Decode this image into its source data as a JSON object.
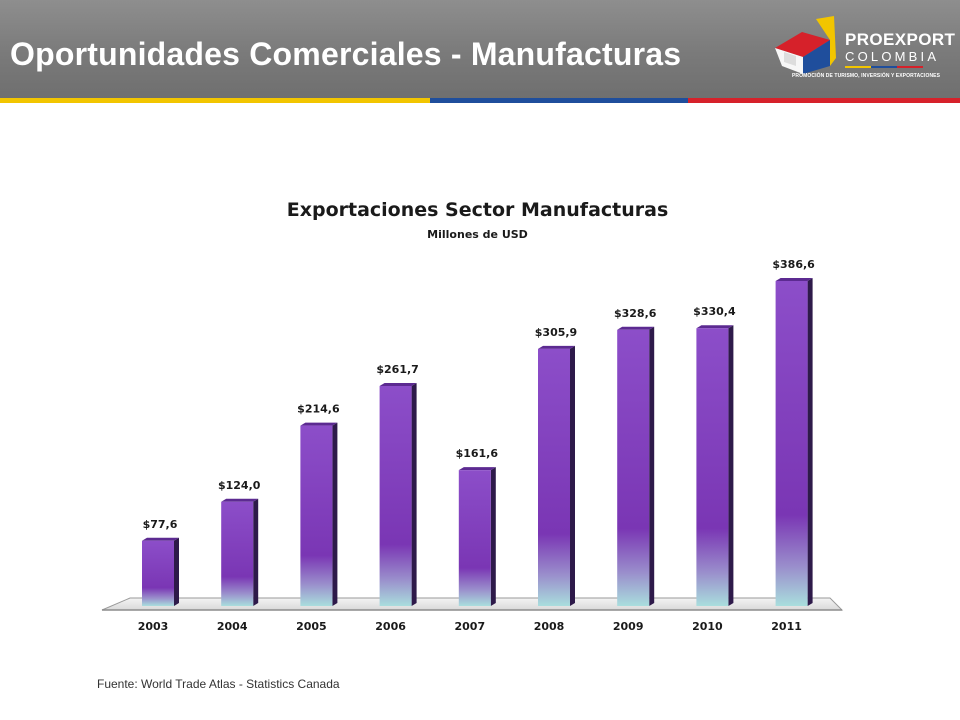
{
  "header": {
    "title": "Oportunidades Comerciales - Manufacturas",
    "stripe_colors": [
      "#f2c500",
      "#1f4e9c",
      "#d6212a"
    ]
  },
  "logo": {
    "name": "PROEXPORT",
    "country": "COLOMBIA",
    "tagline": "PROMOCIÓN DE TURISMO, INVERSIÓN Y EXPORTACIONES",
    "colors": [
      "#f2c500",
      "#1f4e9c",
      "#d6212a"
    ]
  },
  "chart_data": {
    "type": "bar",
    "title": "Exportaciones Sector Manufacturas",
    "subtitle": "Millones de USD",
    "categories": [
      "2003",
      "2004",
      "2005",
      "2006",
      "2007",
      "2008",
      "2009",
      "2010",
      "2011"
    ],
    "values": [
      77.6,
      124.0,
      214.6,
      261.7,
      161.6,
      305.9,
      328.6,
      330.4,
      386.6
    ],
    "value_labels": [
      "$77,6",
      "$124,0",
      "$214,6",
      "$261,7",
      "$161,6",
      "$305,9",
      "$328,6",
      "$330,4",
      "$386,6"
    ],
    "ylim": [
      0,
      400
    ],
    "grid": false,
    "legend": "none",
    "bar_style": "3d",
    "colors": {
      "bar_top": "#8a4bc7",
      "bar_bottom": "#a8dcdc",
      "bar_side": "#2e1a4a"
    }
  },
  "footer": {
    "source": "Fuente: World Trade Atlas - Statistics Canada"
  }
}
